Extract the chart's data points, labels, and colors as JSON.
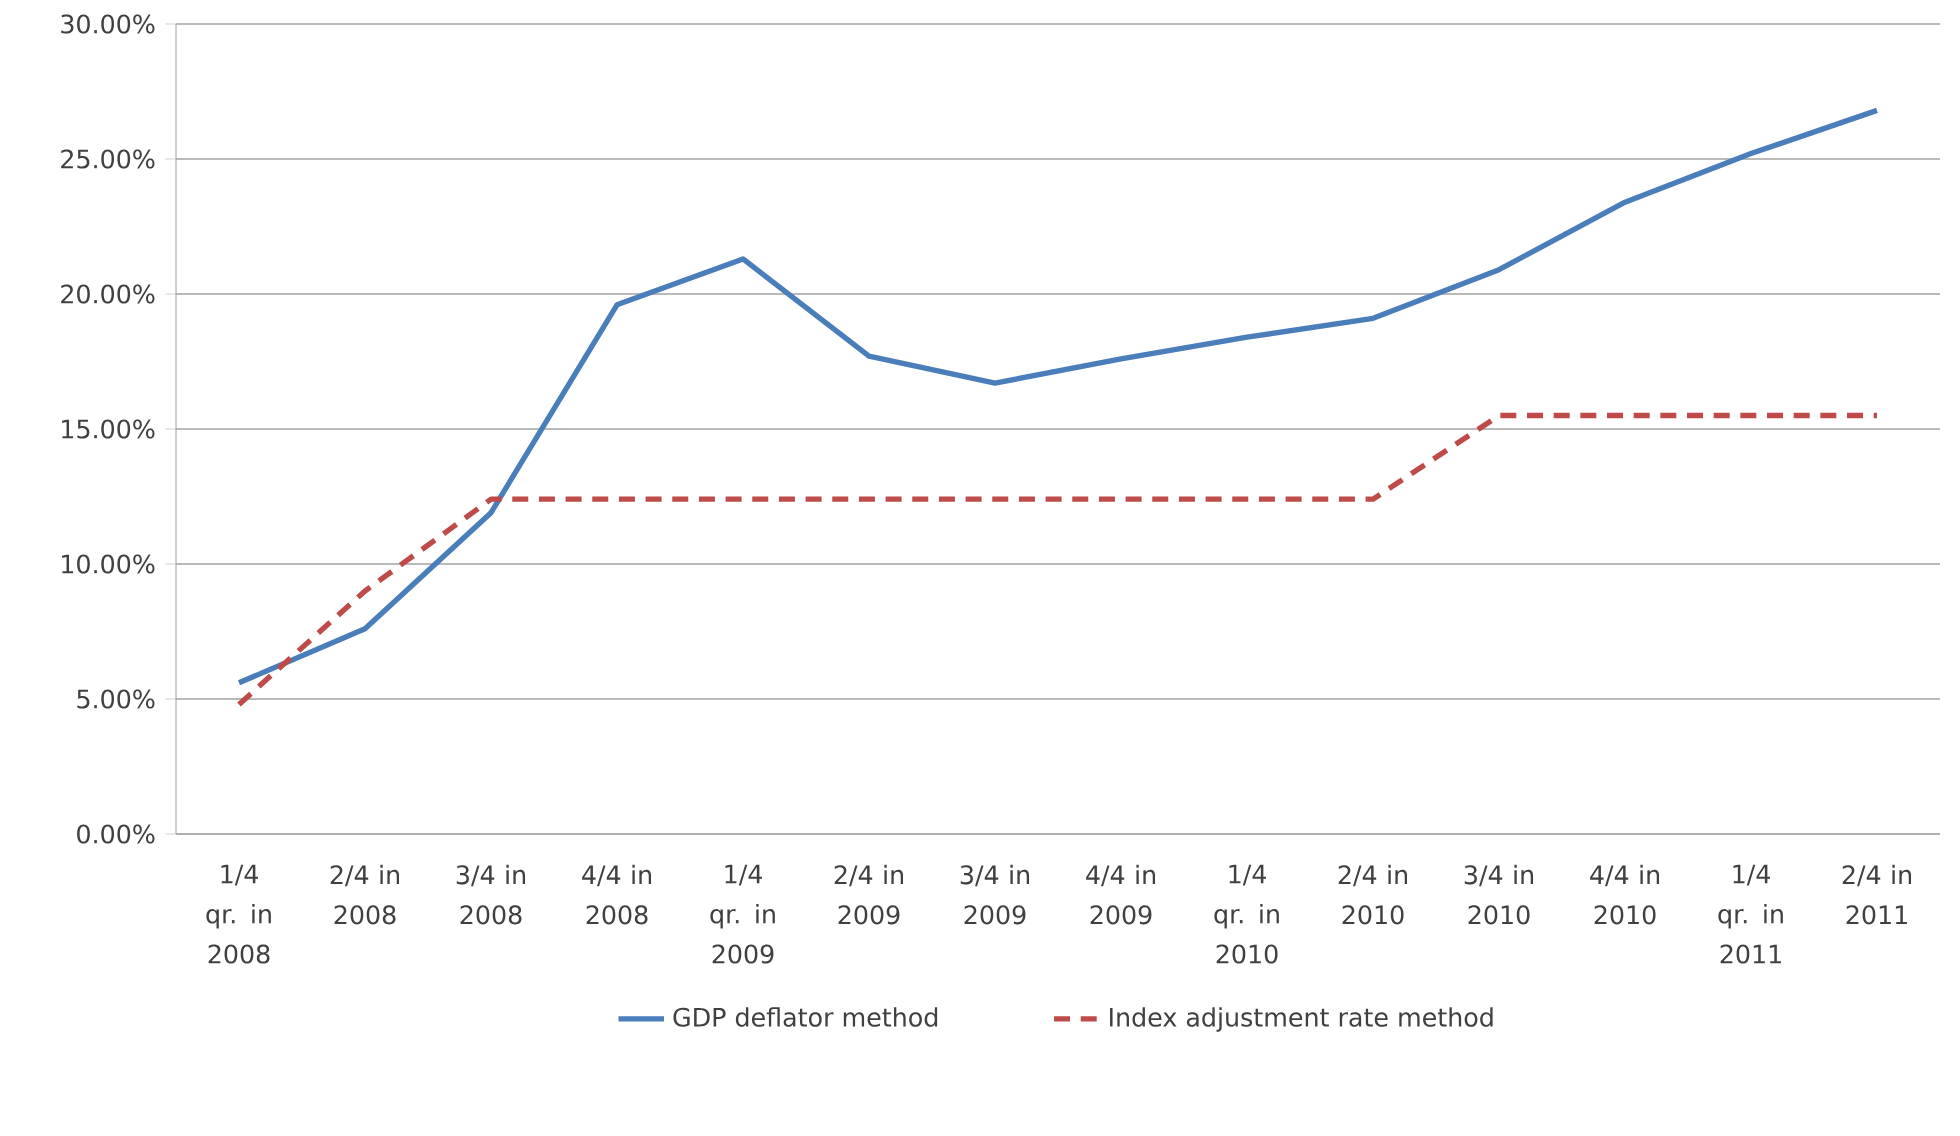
{
  "chart_data": {
    "type": "line",
    "categories": [
      "1/4 qr. in 2008",
      "2/4 in 2008",
      "3/4 in 2008",
      "4/4 in 2008",
      "1/4 qr. in 2009",
      "2/4 in 2009",
      "3/4 in 2009",
      "4/4 in 2009",
      "1/4 qr. in 2010",
      "2/4 in 2010",
      "3/4 in 2010",
      "4/4 in 2010",
      "1/4 qr. in 2011",
      "2/4 in 2011"
    ],
    "series": [
      {
        "name": "GDP deflator method",
        "color": "#4a7ebb",
        "line_style": "solid",
        "values": [
          5.6,
          7.6,
          11.9,
          19.6,
          21.3,
          17.7,
          16.7,
          17.6,
          18.4,
          19.1,
          20.9,
          23.4,
          25.2,
          26.8
        ]
      },
      {
        "name": "Index adjustment rate method",
        "color": "#be4b48",
        "line_style": "dashed",
        "values": [
          4.8,
          9.0,
          12.4,
          12.4,
          12.4,
          12.4,
          12.4,
          12.4,
          12.4,
          12.4,
          15.5,
          15.5,
          15.5,
          15.5
        ]
      }
    ],
    "ylim": [
      0,
      30
    ],
    "yticks": [
      {
        "value": 0,
        "label": "0.00%"
      },
      {
        "value": 5,
        "label": "5.00%"
      },
      {
        "value": 10,
        "label": "10.00%"
      },
      {
        "value": 15,
        "label": "15.00%"
      },
      {
        "value": 20,
        "label": "20.00%"
      },
      {
        "value": 25,
        "label": "25.00%"
      },
      {
        "value": 30,
        "label": "30.00%"
      }
    ],
    "grid": "y",
    "legend": "bottom",
    "marker": "none"
  }
}
